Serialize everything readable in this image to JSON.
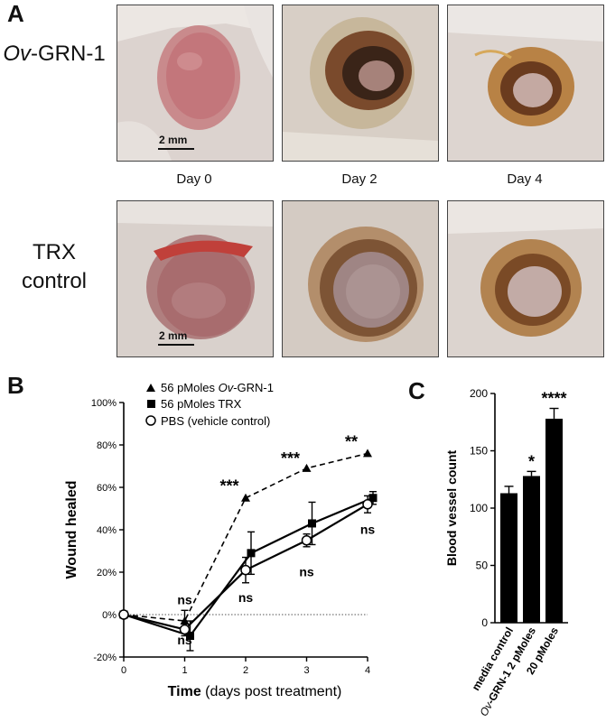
{
  "panel_a": {
    "letter": "A",
    "rows": [
      {
        "label_italic": "Ov",
        "label_rest": "-GRN-1"
      },
      {
        "label_line1": "TRX",
        "label_line2": "control"
      }
    ],
    "days": [
      "Day 0",
      "Day 2",
      "Day 4"
    ],
    "scale_label": "2 mm"
  },
  "panel_b": {
    "letter": "B",
    "legend": [
      {
        "text_pre": "56 pMoles ",
        "text_italic": "Ov",
        "text_post": "-GRN-1",
        "marker": "triangle"
      },
      {
        "text_pre": "56 pMoles TRX",
        "text_italic": "",
        "text_post": "",
        "marker": "square"
      },
      {
        "text_pre": "PBS (vehicle control)",
        "text_italic": "",
        "text_post": "",
        "marker": "open-circle"
      }
    ]
  },
  "panel_c": {
    "letter": "C"
  },
  "chart_data": [
    {
      "type": "line",
      "ylabel": "Wound healed",
      "xlabel_bold": "Time",
      "xlabel_rest": " (days post treatment)",
      "x_ticks": [
        "0",
        "1",
        "2",
        "3",
        "4"
      ],
      "y_ticks": [
        "-20%",
        "0%",
        "20%",
        "40%",
        "60%",
        "80%",
        "100%"
      ],
      "ylim": [
        -20,
        100
      ],
      "xlim": [
        0,
        4
      ],
      "series": [
        {
          "name": "56 pMoles Ov-GRN-1",
          "x": [
            0,
            1,
            2,
            3,
            4
          ],
          "y": [
            0,
            -3,
            55,
            69,
            76
          ],
          "err": [
            0,
            5,
            0,
            0,
            0
          ]
        },
        {
          "name": "56 pMoles TRX",
          "x": [
            0,
            1,
            2,
            3,
            4
          ],
          "y": [
            0,
            -10,
            29,
            43,
            55
          ],
          "err": [
            0,
            7,
            10,
            10,
            3
          ]
        },
        {
          "name": "PBS (vehicle control)",
          "x": [
            0,
            1,
            2,
            3,
            4
          ],
          "y": [
            0,
            -7,
            21,
            35,
            52
          ],
          "err": [
            0,
            3,
            6,
            3,
            4
          ]
        }
      ],
      "significance": [
        {
          "x": 1,
          "y": 5,
          "text": "ns"
        },
        {
          "x": 1,
          "y": -14,
          "text": "ns"
        },
        {
          "x": 2,
          "y": 58,
          "text": "***"
        },
        {
          "x": 2,
          "y": 6,
          "text": "ns"
        },
        {
          "x": 3,
          "y": 71,
          "text": "***"
        },
        {
          "x": 3,
          "y": 18,
          "text": "ns"
        },
        {
          "x": 4,
          "y": 79,
          "text": "**"
        },
        {
          "x": 4,
          "y": 38,
          "text": "ns"
        }
      ]
    },
    {
      "type": "bar",
      "ylabel": "Blood vessel count",
      "categories": [
        "media control",
        "Ov-GRN-1 2 pMoles",
        "20 pMoles"
      ],
      "category_labels": [
        {
          "italic": "",
          "rest": "media control"
        },
        {
          "italic": "Ov",
          "rest": "-GRN-1 2 pMoles"
        },
        {
          "italic": "",
          "rest": "20 pMoles"
        }
      ],
      "values": [
        113,
        128,
        178
      ],
      "errors": [
        6,
        4,
        9
      ],
      "significance": [
        "",
        "*",
        "****"
      ],
      "y_ticks": [
        "0",
        "50",
        "100",
        "150",
        "200"
      ],
      "ylim": [
        0,
        200
      ]
    }
  ]
}
